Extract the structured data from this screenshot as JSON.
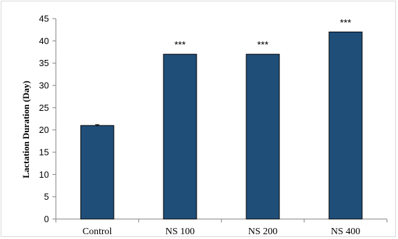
{
  "chart_data": {
    "type": "bar",
    "categories": [
      "Control",
      "NS 100",
      "NS 200",
      "NS 400"
    ],
    "values": [
      21,
      37,
      37,
      42
    ],
    "error": [
      0.2,
      0,
      0,
      0
    ],
    "annotations": [
      "",
      "***",
      "***",
      "***"
    ],
    "ylabel": "Lactation Duration (Day)",
    "xlabel": "",
    "ylim": [
      0,
      45
    ],
    "yticks": [
      0,
      5,
      10,
      15,
      20,
      25,
      30,
      35,
      40,
      45
    ],
    "grid": false,
    "bar_color": "#1f4e79"
  }
}
